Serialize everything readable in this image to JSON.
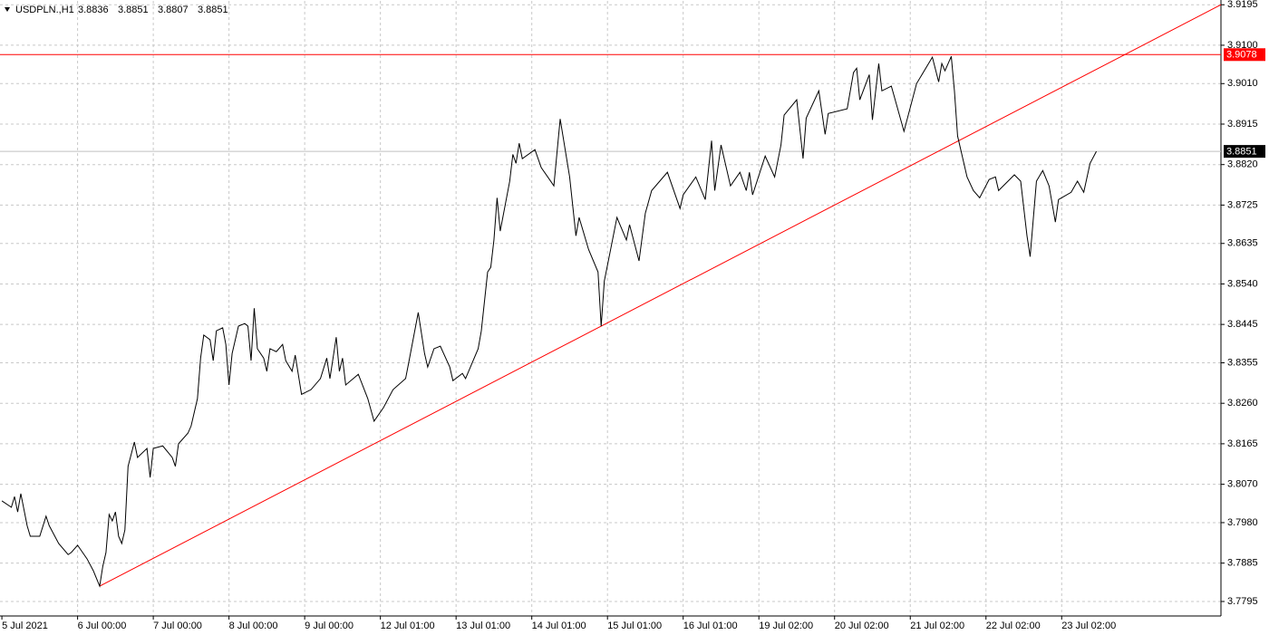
{
  "chart_data": {
    "type": "line",
    "title": "USDPLN.,H1",
    "ohlc": [
      3.8836,
      3.8851,
      3.8807,
      3.8851
    ],
    "color": "#000000",
    "grid": true,
    "xlim": [
      -0.6,
      386.5
    ],
    "ylim": [
      3.7761,
      3.9204
    ],
    "xticks": [
      {
        "value": 0,
        "label": "5 Jul 2021"
      },
      {
        "value": 24,
        "label": "6 Jul 00:00"
      },
      {
        "value": 48,
        "label": "7 Jul 00:00"
      },
      {
        "value": 72,
        "label": "8 Jul 00:00"
      },
      {
        "value": 96,
        "label": "9 Jul 00:00"
      },
      {
        "value": 120,
        "label": "12 Jul 01:00"
      },
      {
        "value": 144,
        "label": "13 Jul 01:00"
      },
      {
        "value": 168,
        "label": "14 Jul 01:00"
      },
      {
        "value": 192,
        "label": "15 Jul 01:00"
      },
      {
        "value": 216,
        "label": "16 Jul 01:00"
      },
      {
        "value": 240,
        "label": "19 Jul 02:00"
      },
      {
        "value": 264,
        "label": "20 Jul 02:00"
      },
      {
        "value": 288,
        "label": "21 Jul 02:00"
      },
      {
        "value": 312,
        "label": "22 Jul 02:00"
      },
      {
        "value": 336,
        "label": "23 Jul 02:00"
      }
    ],
    "yticks": [
      3.9195,
      {
        "value": 3.91,
        "label": "3.9100"
      },
      {
        "value": 3.901,
        "label": "3.9010"
      },
      3.8915,
      {
        "value": 3.882,
        "label": "3.8820"
      },
      3.8725,
      3.8635,
      {
        "value": 3.854,
        "label": "3.8540"
      },
      3.8445,
      3.8355,
      {
        "value": 3.826,
        "label": "3.8260"
      },
      3.8165,
      {
        "value": 3.807,
        "label": "3.8070"
      },
      {
        "value": 3.798,
        "label": "3.7980"
      },
      3.7885,
      3.7795
    ],
    "x": [
      0,
      3,
      4,
      5,
      6,
      8,
      9,
      12,
      14,
      15,
      18,
      21,
      22,
      24,
      27,
      29,
      31,
      32,
      33,
      34,
      35,
      36,
      37,
      38,
      39,
      40,
      42,
      43,
      46,
      47,
      48,
      51,
      54,
      55,
      56,
      59,
      60,
      62,
      63,
      64,
      66,
      67,
      68,
      70,
      71,
      72,
      73,
      75,
      77,
      78,
      79,
      80,
      81,
      83,
      84,
      85,
      87,
      89,
      90,
      92,
      93,
      95,
      98,
      101,
      103,
      104,
      106,
      107,
      108,
      109,
      113,
      116,
      118,
      121,
      124,
      128,
      129,
      132,
      134,
      135,
      137,
      139,
      142,
      143,
      146,
      147,
      151,
      152,
      154,
      155,
      156,
      157,
      158,
      161,
      162,
      163,
      164,
      165,
      169,
      171,
      174,
      175,
      177,
      180,
      182,
      183,
      186,
      189,
      190,
      191,
      193,
      195,
      198,
      199,
      202,
      204,
      206,
      211,
      215,
      216,
      220,
      223,
      225,
      226,
      228,
      231,
      234,
      236,
      237,
      238,
      242,
      245,
      247,
      248,
      252,
      254,
      255,
      259,
      261,
      262,
      268,
      270,
      271,
      272,
      275,
      276,
      278,
      279,
      282,
      284,
      286,
      290,
      295,
      297,
      298,
      299,
      301,
      302,
      303,
      306,
      308,
      310,
      313,
      315,
      316,
      321,
      323,
      325,
      326,
      328,
      330,
      332,
      334,
      335,
      339,
      341,
      343,
      345,
      347
    ],
    "values": [
      3.8031,
      3.8016,
      3.8041,
      3.8005,
      3.8048,
      3.7973,
      3.7948,
      3.7948,
      3.7995,
      3.7973,
      3.7931,
      3.7905,
      3.791,
      3.7927,
      3.7895,
      3.7867,
      3.7831,
      3.7878,
      3.791,
      3.7999,
      3.7984,
      3.8005,
      3.7948,
      3.7931,
      3.7963,
      3.8112,
      3.8169,
      3.8133,
      3.8154,
      3.8086,
      3.8154,
      3.816,
      3.8133,
      3.8112,
      3.8165,
      3.819,
      3.8207,
      3.8271,
      3.8366,
      3.842,
      3.8409,
      3.836,
      3.843,
      3.8437,
      3.8398,
      3.8303,
      3.8377,
      3.8441,
      3.8447,
      3.8441,
      3.836,
      3.8483,
      3.8388,
      3.8366,
      3.8335,
      3.8388,
      3.8381,
      3.8398,
      3.836,
      3.8335,
      3.8373,
      3.8281,
      3.8292,
      3.8318,
      3.8366,
      3.8318,
      3.8415,
      3.8335,
      3.8366,
      3.8303,
      3.8328,
      3.8271,
      3.8218,
      3.825,
      3.8292,
      3.8318,
      3.8356,
      3.8473,
      3.8377,
      3.8345,
      3.8388,
      3.8394,
      3.8345,
      3.8313,
      3.833,
      3.8318,
      3.8388,
      3.843,
      3.8568,
      3.8579,
      3.8643,
      3.8742,
      3.8664,
      3.8781,
      3.8844,
      3.8823,
      3.887,
      3.8834,
      3.8855,
      3.8813,
      3.8781,
      3.877,
      3.8927,
      3.8791,
      3.8653,
      3.8696,
      3.8621,
      3.8568,
      3.8441,
      3.8547,
      3.8621,
      3.8696,
      3.8643,
      3.8679,
      3.8594,
      3.8706,
      3.8759,
      3.8802,
      3.8717,
      3.8749,
      3.8791,
      3.8738,
      3.8876,
      3.8759,
      3.8866,
      3.877,
      3.8802,
      3.8759,
      3.8802,
      3.8749,
      3.884,
      3.8791,
      3.8866,
      3.8936,
      3.8972,
      3.8834,
      3.8929,
      3.8993,
      3.8891,
      3.894,
      3.8951,
      3.9036,
      3.9046,
      3.8972,
      3.9031,
      3.8925,
      3.9057,
      3.8993,
      3.9004,
      3.8951,
      3.8898,
      3.901,
      3.9072,
      3.9014,
      3.9057,
      3.904,
      3.9074,
      3.8993,
      3.8887,
      3.8791,
      3.8759,
      3.8742,
      3.8785,
      3.8791,
      3.8759,
      3.8796,
      3.8781,
      3.8653,
      3.8604,
      3.8781,
      3.8806,
      3.877,
      3.8685,
      3.8738,
      3.8755,
      3.8781,
      3.8755,
      3.8823,
      3.8851
    ],
    "trendline": {
      "color": "#ff0000",
      "x": [
        31,
        386.5
      ],
      "values": [
        3.7831,
        3.9195
      ]
    },
    "hlines": [
      {
        "value": 3.9078,
        "color": "#ff0000"
      }
    ],
    "price_line": {
      "value": 3.8851,
      "color": "#c0c0c0"
    }
  }
}
